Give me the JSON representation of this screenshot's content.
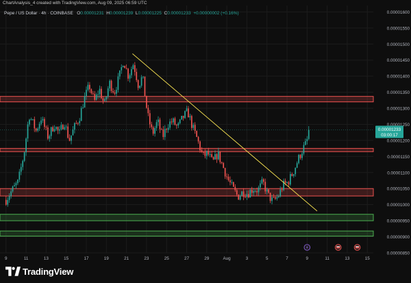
{
  "caption": "ChartAnalysis_4 created with TradingView.com, Aug 09, 2025 06:59 UTC",
  "symbol": {
    "name": "Pepe / US Dollar · 4h · COINBASE",
    "open_label": "O",
    "open": "0.00001231",
    "high_label": "H",
    "high": "0.00001239",
    "low_label": "L",
    "low": "0.00001225",
    "close_label": "C",
    "close": "0.00001233",
    "change": "+0.00000002 (+0.16%)"
  },
  "brand": "TradingView",
  "colors": {
    "background": "#0e0e0e",
    "up": "#26a69a",
    "down": "#ef5350",
    "resistance_zone": "#ef5350",
    "support_zone": "#4caf50",
    "trendline": "#e8d44d",
    "price_label": "#26a69a"
  },
  "chart_data": {
    "type": "candlestick",
    "price_axis": {
      "ylim": [
        8.5e-06,
        1.62e-05
      ],
      "ticks": [
        "0.00001600",
        "0.00001550",
        "0.00001500",
        "0.00001450",
        "0.00001400",
        "0.00001350",
        "0.00001300",
        "0.00001250",
        "0.00001200",
        "0.00001150",
        "0.00001100",
        "0.00001050",
        "0.00001000",
        "0.00000950",
        "0.00000900",
        "0.00000850"
      ]
    },
    "time_axis": {
      "ticks": [
        "9",
        "11",
        "13",
        "15",
        "17",
        "19",
        "21",
        "23",
        "25",
        "27",
        "29",
        "Aug",
        "3",
        "5",
        "7",
        "9",
        "11",
        "13",
        "15"
      ],
      "tick_values": [
        0,
        2,
        4,
        6,
        8,
        10,
        12,
        14,
        16,
        18,
        20,
        22,
        24,
        26,
        28,
        30,
        32,
        34,
        36
      ],
      "unit": "days since Jul 9",
      "xlim": [
        -0.6,
        36.6
      ]
    },
    "current_price": {
      "value": "0.00001233",
      "countdown": "03:00:17"
    },
    "anchors": [
      [
        0,
        1.015
      ],
      [
        0.5,
        1.04
      ],
      [
        1.2,
        1.07
      ],
      [
        1.8,
        1.16
      ],
      [
        2.3,
        1.28
      ],
      [
        3.0,
        1.23
      ],
      [
        3.5,
        1.27
      ],
      [
        4.2,
        1.21
      ],
      [
        4.8,
        1.25
      ],
      [
        5.3,
        1.22
      ],
      [
        5.8,
        1.26
      ],
      [
        6.3,
        1.2
      ],
      [
        6.8,
        1.24
      ],
      [
        7.3,
        1.27
      ],
      [
        7.8,
        1.33
      ],
      [
        8.3,
        1.37
      ],
      [
        8.8,
        1.32
      ],
      [
        9.3,
        1.36
      ],
      [
        9.8,
        1.31
      ],
      [
        10.3,
        1.38
      ],
      [
        10.8,
        1.35
      ],
      [
        11.3,
        1.4
      ],
      [
        11.7,
        1.45
      ],
      [
        12.2,
        1.4
      ],
      [
        12.7,
        1.44
      ],
      [
        13.2,
        1.37
      ],
      [
        13.6,
        1.4
      ],
      [
        14.1,
        1.28
      ],
      [
        14.6,
        1.22
      ],
      [
        15.1,
        1.26
      ],
      [
        15.6,
        1.21
      ],
      [
        16.1,
        1.25
      ],
      [
        16.6,
        1.26
      ],
      [
        17.1,
        1.24
      ],
      [
        17.6,
        1.27
      ],
      [
        18.1,
        1.29
      ],
      [
        18.6,
        1.24
      ],
      [
        19.1,
        1.2
      ],
      [
        19.6,
        1.15
      ],
      [
        20.1,
        1.16
      ],
      [
        20.6,
        1.13
      ],
      [
        21.1,
        1.16
      ],
      [
        21.6,
        1.12
      ],
      [
        22.1,
        1.08
      ],
      [
        22.6,
        1.05
      ],
      [
        23.1,
        1.025
      ],
      [
        23.6,
        1.04
      ],
      [
        24.1,
        1.035
      ],
      [
        24.6,
        1.05
      ],
      [
        25.1,
        1.045
      ],
      [
        25.6,
        1.07
      ],
      [
        26.1,
        1.03
      ],
      [
        26.6,
        1.01
      ],
      [
        27.1,
        1.025
      ],
      [
        27.6,
        1.06
      ],
      [
        28.1,
        1.07
      ],
      [
        28.6,
        1.1
      ],
      [
        29.1,
        1.14
      ],
      [
        29.6,
        1.175
      ],
      [
        29.9,
        1.19
      ],
      [
        30.3,
        1.233
      ]
    ],
    "zones": [
      {
        "kind": "resistance",
        "low": 1.32e-05,
        "high": 1.337e-05
      },
      {
        "kind": "resistance",
        "low": 1.165e-05,
        "high": 1.175e-05
      },
      {
        "kind": "resistance",
        "low": 1.027e-05,
        "high": 1.05e-05
      },
      {
        "kind": "support",
        "low": 9.5e-06,
        "high": 9.7e-06
      },
      {
        "kind": "support",
        "low": 9.02e-06,
        "high": 9.18e-06
      }
    ],
    "trendline": {
      "x1": 12.6,
      "y1": 1.47e-05,
      "x2": 31.0,
      "y2": 9.8e-06
    },
    "event_markers": [
      {
        "x": 30.0,
        "icon": "flash-icon",
        "color": "#7e57c2"
      },
      {
        "x": 33.1,
        "icon": "flag-icon",
        "color": "#ef5350"
      },
      {
        "x": 35.0,
        "icon": "flag-icon",
        "color": "#ef5350"
      }
    ]
  }
}
